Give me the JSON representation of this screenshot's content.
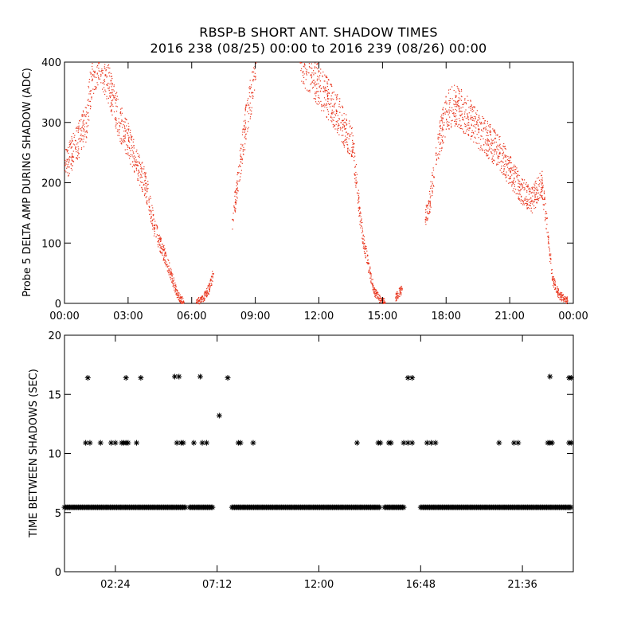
{
  "colors": {
    "probe_points": "#e8341c",
    "shadow_marks": "#000000",
    "axes": "#000000"
  },
  "chart_data": [
    {
      "type": "scatter",
      "title": "RBSP-B SHORT ANT. SHADOW TIMES",
      "subtitle": "2016 238 (08/25) 00:00 to 2016 239 (08/26) 00:00",
      "xlabel": "",
      "ylabel": "Probe 5 DELTA AMP DURING SHADOW (ADC)",
      "x_unit": "hours",
      "xlim": [
        0,
        24
      ],
      "ylim": [
        0,
        400
      ],
      "x_ticks": [
        0,
        3,
        6,
        9,
        12,
        15,
        18,
        21,
        24
      ],
      "x_tick_labels": [
        "00:00",
        "03:00",
        "06:00",
        "09:00",
        "12:00",
        "15:00",
        "18:00",
        "21:00",
        "00:00"
      ],
      "y_ticks": [
        0,
        100,
        200,
        300,
        400
      ],
      "y_tick_labels": [
        "0",
        "100",
        "200",
        "300",
        "400"
      ],
      "series": [
        {
          "segments": [
            {
              "x": [
                0.0,
                0.5,
                1.0,
                1.3,
                1.6,
                1.9,
                2.2,
                2.6,
                3.0,
                3.4,
                3.8,
                4.2,
                4.6,
                5.0,
                5.3,
                5.6
              ],
              "y": [
                230,
                260,
                300,
                380,
                400,
                380,
                350,
                300,
                270,
                230,
                200,
                130,
                90,
                50,
                15,
                3
              ]
            },
            {
              "x": [
                6.2,
                6.5,
                6.8,
                7.0
              ],
              "y": [
                3,
                8,
                25,
                50
              ]
            },
            {
              "x": [
                7.9,
                8.1,
                8.3,
                8.5,
                8.8,
                9.0
              ],
              "y": [
                140,
                190,
                240,
                290,
                350,
                400
              ]
            },
            {
              "x": [
                11.1,
                11.6,
                12.0,
                12.4,
                12.8,
                13.2,
                13.6,
                13.9,
                14.1,
                14.4,
                14.6,
                14.9,
                15.1
              ],
              "y": [
                400,
                380,
                360,
                340,
                320,
                290,
                260,
                150,
                100,
                50,
                20,
                5,
                2
              ]
            },
            {
              "x": [
                15.6,
                15.8,
                15.9
              ],
              "y": [
                10,
                20,
                25
              ]
            },
            {
              "x": [
                17.0,
                17.2,
                17.4
              ],
              "y": [
                140,
                170,
                210
              ]
            },
            {
              "x": [
                17.5,
                17.8,
                18.0,
                18.5,
                19.0,
                19.5,
                20.0,
                20.5,
                21.0,
                21.5,
                22.0,
                22.5,
                22.8,
                23.0,
                23.3,
                23.7
              ],
              "y": [
                250,
                290,
                320,
                330,
                310,
                290,
                270,
                250,
                220,
                190,
                170,
                200,
                110,
                40,
                15,
                5
              ]
            }
          ]
        }
      ],
      "grid": false
    },
    {
      "type": "scatter",
      "xlabel": "",
      "ylabel": "TIME BETWEEN SHADOWS (SEC)",
      "xlim": [
        0,
        24
      ],
      "ylim": [
        0,
        20
      ],
      "x_ticks": [
        2.4,
        7.2,
        12.0,
        16.8,
        21.6
      ],
      "x_tick_labels": [
        "02:24",
        "07:12",
        "12:00",
        "16:48",
        "21:36"
      ],
      "y_ticks": [
        0,
        5,
        10,
        15,
        20
      ],
      "y_tick_labels": [
        "0",
        "5",
        "10",
        "15",
        "20"
      ],
      "marker": "asterisk",
      "series": [
        {
          "name": "",
          "baseline_value": 5.45,
          "baseline_ranges": [
            [
              0.0,
              5.7
            ],
            [
              5.9,
              7.0
            ],
            [
              7.9,
              14.9
            ],
            [
              15.1,
              16.0
            ],
            [
              16.8,
              23.9
            ]
          ],
          "x": [
            1.1,
            6.4,
            7.7,
            2.9,
            3.6,
            5.2,
            5.4,
            16.2,
            16.4,
            22.9,
            23.8,
            23.9,
            7.3,
            1.0,
            1.2,
            1.7,
            2.2,
            2.4,
            2.7,
            2.8,
            2.9,
            3.0,
            3.4,
            5.3,
            5.5,
            5.6,
            6.1,
            6.5,
            6.7,
            8.2,
            8.3,
            8.9,
            13.8,
            14.8,
            14.9,
            15.3,
            15.4,
            16.0,
            16.2,
            16.4,
            17.1,
            17.3,
            17.5,
            20.5,
            21.2,
            21.4,
            22.8,
            22.9,
            23.0,
            23.8,
            23.9
          ],
          "y": [
            16.4,
            16.5,
            16.4,
            16.4,
            16.4,
            16.5,
            16.5,
            16.4,
            16.4,
            16.5,
            16.4,
            16.4,
            13.2,
            10.9,
            10.9,
            10.9,
            10.9,
            10.9,
            10.9,
            10.9,
            10.9,
            10.9,
            10.9,
            10.9,
            10.9,
            10.9,
            10.9,
            10.9,
            10.9,
            10.9,
            10.9,
            10.9,
            10.9,
            10.9,
            10.9,
            10.9,
            10.9,
            10.9,
            10.9,
            10.9,
            10.9,
            10.9,
            10.9,
            10.9,
            10.9,
            10.9,
            10.9,
            10.9,
            10.9,
            10.9,
            10.9
          ]
        }
      ],
      "grid": false
    }
  ]
}
